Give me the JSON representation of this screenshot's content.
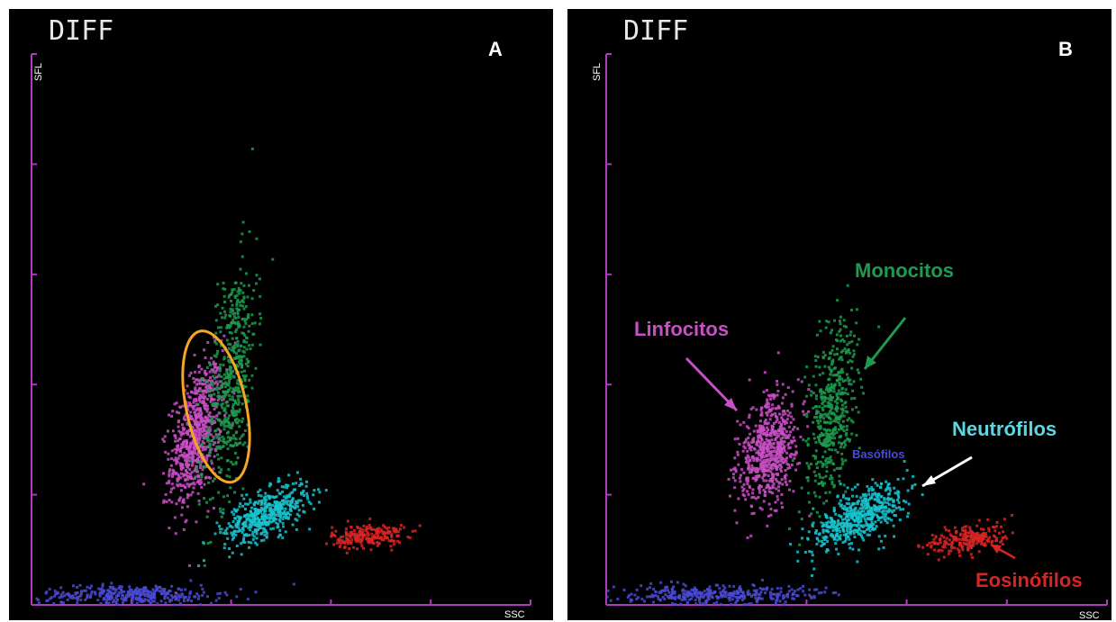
{
  "colors": {
    "axis": "#b03bbf",
    "linfocitos": "#c94fc6",
    "monocitos": "#1f9a4f",
    "neutrofilos": "#17c3cf",
    "eosinofilos": "#d82424",
    "basofilos": "#4a4ad4",
    "highlight": "#f5a623"
  },
  "icons": [
    "arrow-icon"
  ],
  "chart_data": [
    {
      "type": "scatter",
      "title": "DIFF",
      "panel_label": "A",
      "xlabel": "SSC",
      "ylabel": "SFL",
      "xlim": [
        0,
        100
      ],
      "ylim": [
        0,
        100
      ],
      "highlight_ellipse": {
        "cx": 37,
        "cy": 36,
        "rx": 6,
        "ry": 14,
        "rotation": -12
      },
      "series": [
        {
          "color": "linfocitos",
          "cx": 33,
          "cy": 31,
          "sx": 2.6,
          "sy": 6.5,
          "rho": 0.45,
          "n": 700
        },
        {
          "color": "monocitos",
          "cx": 40,
          "cy": 41,
          "sx": 2.6,
          "sy": 11,
          "rho": 0.5,
          "n": 550
        },
        {
          "color": "neutrofilos",
          "cx": 47,
          "cy": 16.5,
          "sx": 4.2,
          "sy": 2.6,
          "rho": 0.6,
          "n": 500
        },
        {
          "color": "eosinofilos",
          "cx": 67.5,
          "cy": 12.5,
          "sx": 3.6,
          "sy": 1.1,
          "rho": 0.2,
          "n": 230
        },
        {
          "color": "basofilos",
          "cx": 20,
          "cy": 1.8,
          "sx": 9,
          "sy": 0.9,
          "rho": 0,
          "n": 350
        }
      ]
    },
    {
      "type": "scatter",
      "title": "DIFF",
      "panel_label": "B",
      "xlabel": "SSC",
      "ylabel": "SFL",
      "xlim": [
        0,
        100
      ],
      "ylim": [
        0,
        100
      ],
      "annotations": [
        "Monocitos",
        "Linfocitos",
        "Neutrófilos",
        "Basófilos",
        "Eosinófilos"
      ],
      "series": [
        {
          "name": "Linfocitos",
          "color": "linfocitos",
          "cx": 32.5,
          "cy": 28,
          "sx": 3,
          "sy": 5,
          "rho": 0.3,
          "n": 650
        },
        {
          "name": "Monocitos",
          "color": "monocitos",
          "cx": 45,
          "cy": 35,
          "sx": 2.5,
          "sy": 8,
          "rho": 0.4,
          "n": 500
        },
        {
          "name": "Neutrófilos",
          "color": "neutrofilos",
          "cx": 50,
          "cy": 16,
          "sx": 4.5,
          "sy": 3,
          "rho": 0.6,
          "n": 550
        },
        {
          "name": "Eosinófilos",
          "color": "eosinofilos",
          "cx": 72.5,
          "cy": 12,
          "sx": 4,
          "sy": 1.3,
          "rho": 0.3,
          "n": 230
        },
        {
          "name": "Basófilos",
          "color": "basofilos",
          "cx": 22,
          "cy": 1.8,
          "sx": 10,
          "sy": 0.9,
          "rho": 0,
          "n": 350
        }
      ]
    }
  ]
}
